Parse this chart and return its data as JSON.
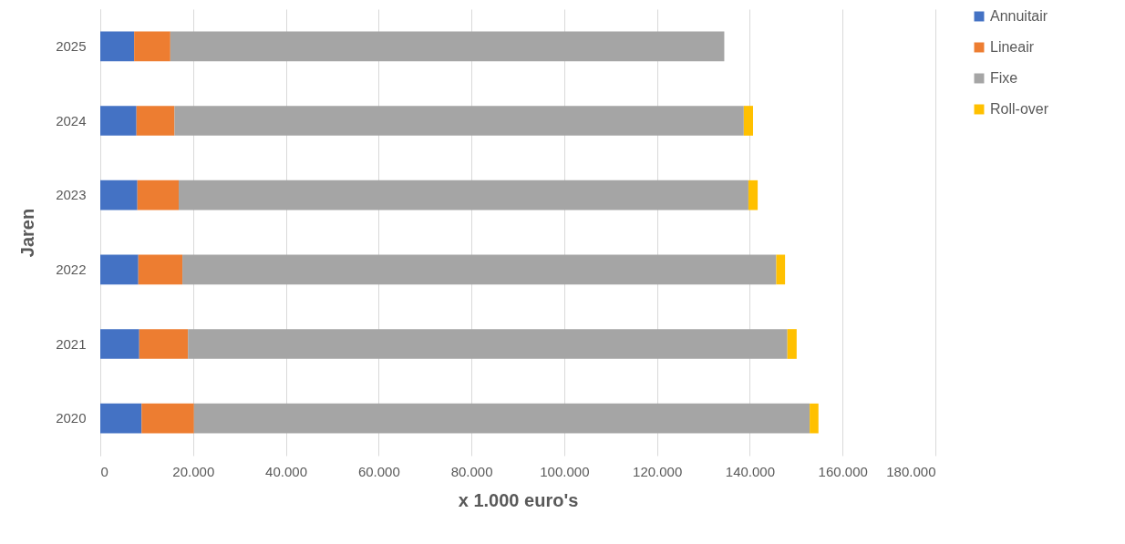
{
  "chart_data": {
    "type": "bar",
    "orientation": "horizontal",
    "stacked": true,
    "xlabel": "x 1.000 euro's",
    "ylabel": "Jaren",
    "categories": [
      "2025",
      "2024",
      "2023",
      "2022",
      "2021",
      "2020"
    ],
    "series": [
      {
        "name": "Annuitair",
        "color": "#4472c4",
        "values": [
          7300,
          7800,
          8000,
          8200,
          8400,
          8900
        ]
      },
      {
        "name": "Lineair",
        "color": "#ed7d31",
        "values": [
          7800,
          8200,
          8900,
          9500,
          10500,
          11300
        ]
      },
      {
        "name": "Fixe",
        "color": "#a5a5a5",
        "values": [
          119400,
          122700,
          122800,
          128000,
          129200,
          132700
        ]
      },
      {
        "name": "Roll-over",
        "color": "#ffc000",
        "values": [
          null,
          2000,
          2000,
          1900,
          2000,
          1900
        ]
      }
    ],
    "xlim": [
      0,
      180000
    ],
    "xticks": [
      0,
      {
        "value": 20000,
        "label": "20.000"
      },
      {
        "value": 40000,
        "label": "40.000"
      },
      {
        "value": 60000,
        "label": "60.000"
      },
      {
        "value": 80000,
        "label": "80.000"
      },
      {
        "value": 100000,
        "label": "100.000"
      },
      {
        "value": 120000,
        "label": "120.000"
      },
      {
        "value": 140000,
        "label": "140.000"
      },
      {
        "value": 160000,
        "label": "160.000"
      },
      {
        "value": 180000,
        "label": "180.000"
      }
    ],
    "grid": "x",
    "legend": "right"
  }
}
